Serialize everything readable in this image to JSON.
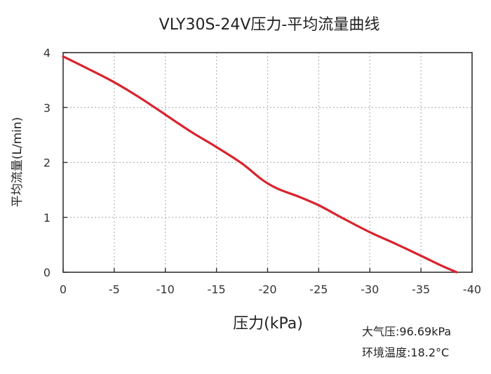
{
  "chart_data": {
    "type": "line",
    "title": "VLY30S-24V压力-平均流量曲线",
    "xlabel": "压力(kPa)",
    "ylabel": "平均流量(L/min)",
    "xlim": [
      0,
      -40
    ],
    "ylim": [
      0,
      4
    ],
    "x_ticks": [
      0,
      -5,
      -10,
      -15,
      -20,
      -25,
      -30,
      -35,
      -40
    ],
    "y_ticks": [
      0,
      1,
      2,
      3,
      4
    ],
    "x_tick_labels": [
      "0",
      "-5",
      "-10",
      "-15",
      "-20",
      "-25",
      "-30",
      "-35",
      "-40"
    ],
    "y_tick_labels": [
      "0",
      "1",
      "2",
      "3",
      "4"
    ],
    "grid": true,
    "series": [
      {
        "color": "#d9232d",
        "x": [
          0,
          -2.5,
          -5,
          -7.5,
          -10,
          -12.5,
          -15,
          -17.5,
          -19.5,
          -21,
          -23,
          -25,
          -27.5,
          -30,
          -32.5,
          -35,
          -37,
          -38.5
        ],
        "values": [
          3.93,
          3.7,
          3.46,
          3.18,
          2.87,
          2.56,
          2.28,
          1.98,
          1.68,
          1.52,
          1.38,
          1.22,
          0.97,
          0.73,
          0.52,
          0.3,
          0.12,
          0.0
        ]
      }
    ],
    "annotations": [
      "大气压:96.69kPa",
      "环境温度:18.2°C"
    ]
  }
}
